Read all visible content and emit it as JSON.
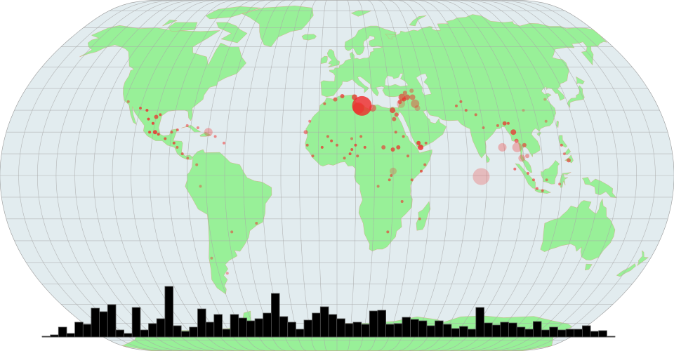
{
  "map": {
    "projection": "natural-earth",
    "graticule_step_degrees": 10,
    "colors": {
      "ocean": "#e2ecef",
      "land": "#98f098",
      "border": "#e08a6a",
      "graticule": "#a8a8a8",
      "marker": "#f02828",
      "bar": "#000000",
      "bar_stroke": "#555555"
    },
    "markers": [
      {
        "lon": 14,
        "lat": 32,
        "size": 14,
        "opacity": 0.8
      },
      {
        "lon": 12,
        "lat": 31,
        "size": 8,
        "opacity": 0.5
      },
      {
        "lon": 20,
        "lat": 31,
        "size": 5,
        "opacity": 0.5
      },
      {
        "lon": 10,
        "lat": 36,
        "size": 4,
        "opacity": 0.7
      },
      {
        "lon": 3,
        "lat": 36.5,
        "size": 3,
        "opacity": 0.7
      },
      {
        "lon": -1,
        "lat": 35,
        "size": 3,
        "opacity": 0.6
      },
      {
        "lon": -7,
        "lat": 33,
        "size": 2,
        "opacity": 0.6
      },
      {
        "lon": 31,
        "lat": 30,
        "size": 4,
        "opacity": 0.7
      },
      {
        "lon": 31.5,
        "lat": 26,
        "size": 3,
        "opacity": 0.6
      },
      {
        "lon": 33,
        "lat": 28,
        "size": 3,
        "opacity": 0.6
      },
      {
        "lon": 37,
        "lat": 36,
        "size": 5,
        "opacity": 0.6
      },
      {
        "lon": 38,
        "lat": 35,
        "size": 3,
        "opacity": 0.7
      },
      {
        "lon": 40,
        "lat": 36,
        "size": 4,
        "opacity": 0.6
      },
      {
        "lon": 44,
        "lat": 33,
        "size": 6,
        "opacity": 0.4
      },
      {
        "lon": 43,
        "lat": 36,
        "size": 4,
        "opacity": 0.5
      },
      {
        "lon": 36,
        "lat": 33,
        "size": 6,
        "opacity": 0.25
      },
      {
        "lon": 45,
        "lat": 31,
        "size": 4,
        "opacity": 0.3
      },
      {
        "lon": 35.5,
        "lat": 33.8,
        "size": 3,
        "opacity": 0.6
      },
      {
        "lon": 39,
        "lat": 38,
        "size": 3,
        "opacity": 0.5
      },
      {
        "lon": 43,
        "lat": 39,
        "size": 3,
        "opacity": 0.4
      },
      {
        "lon": 44,
        "lat": 15,
        "size": 3,
        "opacity": 0.8
      },
      {
        "lon": 45,
        "lat": 13,
        "size": 4,
        "opacity": 0.8
      },
      {
        "lon": 48,
        "lat": 15,
        "size": 2,
        "opacity": 0.6
      },
      {
        "lon": 45,
        "lat": 2,
        "size": 2,
        "opacity": 0.7
      },
      {
        "lon": 47,
        "lat": 5,
        "size": 2,
        "opacity": 0.6
      },
      {
        "lon": 33,
        "lat": 13,
        "size": 3,
        "opacity": 0.7
      },
      {
        "lon": 30,
        "lat": 12,
        "size": 3,
        "opacity": 0.7
      },
      {
        "lon": 25,
        "lat": 13,
        "size": 3,
        "opacity": 0.6
      },
      {
        "lon": 32,
        "lat": 20,
        "size": 2,
        "opacity": 0.6
      },
      {
        "lon": 36,
        "lat": 18,
        "size": 2,
        "opacity": 0.6
      },
      {
        "lon": 15,
        "lat": 13,
        "size": 2,
        "opacity": 0.7
      },
      {
        "lon": 10,
        "lat": 14,
        "size": 2,
        "opacity": 0.7
      },
      {
        "lon": 13,
        "lat": 18,
        "size": 2,
        "opacity": 0.6
      },
      {
        "lon": 8,
        "lat": 17,
        "size": 2,
        "opacity": 0.5
      },
      {
        "lon": -3,
        "lat": 16,
        "size": 2,
        "opacity": 0.7
      },
      {
        "lon": -8,
        "lat": 13,
        "size": 2,
        "opacity": 0.7
      },
      {
        "lon": 0,
        "lat": 14,
        "size": 2,
        "opacity": 0.6
      },
      {
        "lon": -5,
        "lat": 18,
        "size": 2,
        "opacity": 0.6
      },
      {
        "lon": 7,
        "lat": 10,
        "size": 2,
        "opacity": 0.7
      },
      {
        "lon": 8,
        "lat": 12,
        "size": 2,
        "opacity": 0.7
      },
      {
        "lon": 4,
        "lat": 8,
        "size": 2,
        "opacity": 0.6
      },
      {
        "lon": 11,
        "lat": 9,
        "size": 2,
        "opacity": 0.6
      },
      {
        "lon": -13,
        "lat": 9,
        "size": 2,
        "opacity": 0.6
      },
      {
        "lon": -16,
        "lat": 14,
        "size": 2,
        "opacity": 0.6
      },
      {
        "lon": -17,
        "lat": 20,
        "size": 3,
        "opacity": 0.5
      },
      {
        "lon": -15,
        "lat": 25,
        "size": 2,
        "opacity": 0.5
      },
      {
        "lon": 28,
        "lat": -2,
        "size": 2,
        "opacity": 0.6
      },
      {
        "lon": 29,
        "lat": 0,
        "size": 2,
        "opacity": 0.6
      },
      {
        "lon": 22,
        "lat": -5,
        "size": 2,
        "opacity": 0.5
      },
      {
        "lon": 38,
        "lat": 9,
        "size": 2,
        "opacity": 0.6
      },
      {
        "lon": 40,
        "lat": -2,
        "size": 2,
        "opacity": 0.6
      },
      {
        "lon": 30,
        "lat": 2,
        "size": 5,
        "opacity": 0.25
      },
      {
        "lon": 35,
        "lat": -12,
        "size": 2,
        "opacity": 0.6
      },
      {
        "lon": 28,
        "lat": -26,
        "size": 2,
        "opacity": 0.6
      },
      {
        "lon": 45,
        "lat": -20,
        "size": 2,
        "opacity": 0.5
      },
      {
        "lon": 67,
        "lat": 32,
        "size": 2,
        "opacity": 0.6
      },
      {
        "lon": 70,
        "lat": 34,
        "size": 2,
        "opacity": 0.6
      },
      {
        "lon": 72,
        "lat": 30,
        "size": 2,
        "opacity": 0.6
      },
      {
        "lon": 77,
        "lat": 28,
        "size": 2,
        "opacity": 0.6
      },
      {
        "lon": 80,
        "lat": 22,
        "size": 2,
        "opacity": 0.5
      },
      {
        "lon": 88,
        "lat": 23,
        "size": 2,
        "opacity": 0.6
      },
      {
        "lon": 92,
        "lat": 24,
        "size": 3,
        "opacity": 0.7
      },
      {
        "lon": 94,
        "lat": 24,
        "size": 2,
        "opacity": 0.7
      },
      {
        "lon": 96,
        "lat": 20,
        "size": 4,
        "opacity": 0.7
      },
      {
        "lon": 97,
        "lat": 16,
        "size": 3,
        "opacity": 0.6
      },
      {
        "lon": 89,
        "lat": 13,
        "size": 6,
        "opacity": 0.3
      },
      {
        "lon": 97,
        "lat": 13,
        "size": 7,
        "opacity": 0.3
      },
      {
        "lon": 99,
        "lat": 8,
        "size": 5,
        "opacity": 0.3
      },
      {
        "lon": 101,
        "lat": 14,
        "size": 3,
        "opacity": 0.6
      },
      {
        "lon": 102,
        "lat": 9,
        "size": 3,
        "opacity": 0.4
      },
      {
        "lon": 121,
        "lat": 14,
        "size": 2,
        "opacity": 0.6
      },
      {
        "lon": 124,
        "lat": 7,
        "size": 3,
        "opacity": 0.6
      },
      {
        "lon": 122,
        "lat": 10,
        "size": 2,
        "opacity": 0.5
      },
      {
        "lon": 105,
        "lat": -2,
        "size": 2,
        "opacity": 0.6
      },
      {
        "lon": 107,
        "lat": -6,
        "size": 2,
        "opacity": 0.6
      },
      {
        "lon": 110,
        "lat": -7,
        "size": 2,
        "opacity": 0.6
      },
      {
        "lon": 119,
        "lat": -4,
        "size": 2,
        "opacity": 0.5
      },
      {
        "lon": 112,
        "lat": -2,
        "size": 2,
        "opacity": 0.5
      },
      {
        "lon": 95,
        "lat": 3,
        "size": 2,
        "opacity": 0.6
      },
      {
        "lon": 102,
        "lat": 1,
        "size": 2,
        "opacity": 0.6
      },
      {
        "lon": 115,
        "lat": 25,
        "size": 2,
        "opacity": 0.4
      },
      {
        "lon": 104,
        "lat": 30,
        "size": 2,
        "opacity": 0.3
      },
      {
        "lon": 118,
        "lat": 35,
        "size": 2,
        "opacity": 0.3
      },
      {
        "lon": 77,
        "lat": -0.5,
        "size": 12,
        "opacity": 0.25
      },
      {
        "lon": -106,
        "lat": 30,
        "size": 2,
        "opacity": 0.8
      },
      {
        "lon": -104,
        "lat": 26,
        "size": 2,
        "opacity": 0.8
      },
      {
        "lon": -101,
        "lat": 24,
        "size": 2,
        "opacity": 0.8
      },
      {
        "lon": -99,
        "lat": 20,
        "size": 3,
        "opacity": 0.8
      },
      {
        "lon": -102,
        "lat": 20,
        "size": 2,
        "opacity": 0.8
      },
      {
        "lon": -97,
        "lat": 19,
        "size": 2,
        "opacity": 0.8
      },
      {
        "lon": -93,
        "lat": 17,
        "size": 2,
        "opacity": 0.7
      },
      {
        "lon": -90,
        "lat": 20,
        "size": 2,
        "opacity": 0.6
      },
      {
        "lon": -87,
        "lat": 21,
        "size": 2,
        "opacity": 0.6
      },
      {
        "lon": -110,
        "lat": 31,
        "size": 2,
        "opacity": 0.7
      },
      {
        "lon": -98,
        "lat": 28,
        "size": 2,
        "opacity": 0.7
      },
      {
        "lon": -100,
        "lat": 27,
        "size": 3,
        "opacity": 0.7
      },
      {
        "lon": -88,
        "lat": 15,
        "size": 2,
        "opacity": 0.7
      },
      {
        "lon": -86,
        "lat": 13,
        "size": 2,
        "opacity": 0.6
      },
      {
        "lon": -83,
        "lat": 10,
        "size": 2,
        "opacity": 0.6
      },
      {
        "lon": -80,
        "lat": 8,
        "size": 2,
        "opacity": 0.5
      },
      {
        "lon": -70,
        "lat": 20,
        "size": 6,
        "opacity": 0.3
      },
      {
        "lon": -66,
        "lat": 18,
        "size": 2,
        "opacity": 0.5
      },
      {
        "lon": -76,
        "lat": 22,
        "size": 2,
        "opacity": 0.5
      },
      {
        "lon": -61,
        "lat": 15,
        "size": 2,
        "opacity": 0.5
      },
      {
        "lon": -82,
        "lat": 23,
        "size": 2,
        "opacity": 0.5
      },
      {
        "lon": -75,
        "lat": 5,
        "size": 2,
        "opacity": 0.5
      },
      {
        "lon": -73,
        "lat": -5,
        "size": 2,
        "opacity": 0.4
      },
      {
        "lon": -58,
        "lat": -26,
        "size": 2,
        "opacity": 0.5
      },
      {
        "lon": -44,
        "lat": -22,
        "size": 2,
        "opacity": 0.5
      },
      {
        "lon": -65,
        "lat": -45,
        "size": 2,
        "opacity": 0.4
      },
      {
        "lon": -72,
        "lat": -38,
        "size": 2,
        "opacity": 0.4
      },
      {
        "lon": -118,
        "lat": 34,
        "size": 2,
        "opacity": 0.5
      }
    ]
  },
  "chart_data": {
    "type": "bar",
    "title": "",
    "xlabel": "",
    "ylabel": "",
    "grid": false,
    "values": [
      1,
      3,
      14,
      5,
      21,
      18,
      41,
      36,
      46,
      10,
      5,
      42,
      10,
      19,
      26,
      72,
      16,
      8,
      14,
      40,
      21,
      32,
      11,
      32,
      27,
      23,
      26,
      34,
      62,
      29,
      21,
      11,
      24,
      34,
      43,
      32,
      26,
      19,
      21,
      18,
      37,
      38,
      18,
      19,
      28,
      25,
      23,
      16,
      23,
      18,
      12,
      15,
      11,
      42,
      20,
      17,
      21,
      20,
      14,
      11,
      22,
      10,
      14,
      10,
      11,
      11,
      16,
      8,
      9,
      1
    ]
  }
}
